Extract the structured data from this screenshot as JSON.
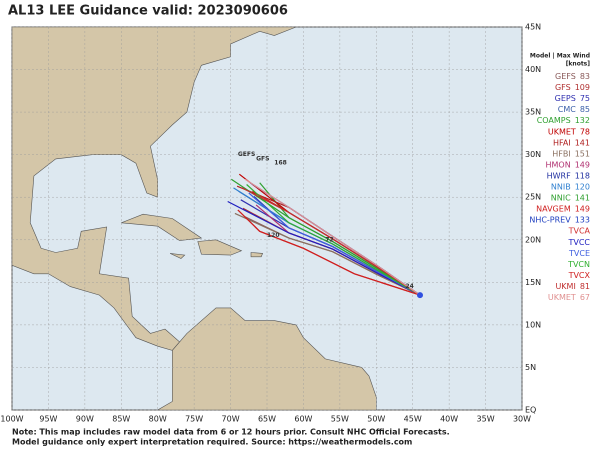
{
  "title": "AL13 LEE Guidance valid: 2023090606",
  "legend": {
    "header": "Model | Max Wind",
    "units": "[knots]",
    "models": [
      {
        "name": "GEFS",
        "wind": 83,
        "color": "#8a5a5a"
      },
      {
        "name": "GFS",
        "wind": 109,
        "color": "#b03030"
      },
      {
        "name": "GEPS",
        "wind": 75,
        "color": "#3030b0"
      },
      {
        "name": "CMC",
        "wind": 85,
        "color": "#3a5fa8"
      },
      {
        "name": "COAMPS",
        "wind": 132,
        "color": "#30a030"
      },
      {
        "name": "UKMET",
        "wind": 78,
        "color": "#c00000"
      },
      {
        "name": "HFAI",
        "wind": 141,
        "color": "#b02020"
      },
      {
        "name": "HFBI",
        "wind": 151,
        "color": "#8a7060"
      },
      {
        "name": "HMON",
        "wind": 149,
        "color": "#b03070"
      },
      {
        "name": "HWRF",
        "wind": 118,
        "color": "#2030a0"
      },
      {
        "name": "NNIB",
        "wind": 120,
        "color": "#3080d0"
      },
      {
        "name": "NNIC",
        "wind": 141,
        "color": "#30a030"
      },
      {
        "name": "NAVGEM",
        "wind": 149,
        "color": "#d02020"
      },
      {
        "name": "NHC-PREV",
        "wind": 133,
        "color": "#2040c0"
      },
      {
        "name": "TVCA",
        "color": "#d03030"
      },
      {
        "name": "TVCC",
        "color": "#2020c0"
      },
      {
        "name": "TVCE",
        "color": "#4060e0"
      },
      {
        "name": "TVCN",
        "color": "#30b030"
      },
      {
        "name": "TVCX",
        "color": "#d02020"
      },
      {
        "name": "UKMI",
        "wind": 81,
        "color": "#c03030"
      },
      {
        "name": "UKMET",
        "wind": 67,
        "color": "#e09090"
      }
    ]
  },
  "lon_labels": [
    "100W",
    "95W",
    "90W",
    "85W",
    "80W",
    "75W",
    "70W",
    "65W",
    "60W",
    "55W",
    "50W",
    "45W",
    "40W",
    "35W",
    "30W"
  ],
  "lat_labels": [
    "45N",
    "40N",
    "35N",
    "30N",
    "25N",
    "20N",
    "15N",
    "10N",
    "5N",
    "EQ"
  ],
  "map_labels": [
    "GEFS",
    "GFS",
    "168",
    "120",
    "72",
    "24"
  ],
  "notes": [
    "Note: This map includes raw model data from 6 or 12 hours prior. Consult NHC Official Forecasts.",
    "Model guidance only expert interpretation required. Source: https://weathermodels.com"
  ]
}
